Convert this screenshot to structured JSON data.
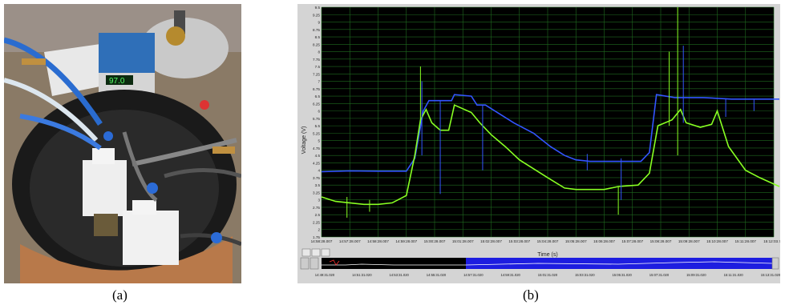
{
  "captions": {
    "a": "(a)",
    "b": "(b)"
  },
  "photo": {
    "controller_display": "97.0",
    "controller_icon": "temperature-controller-icon"
  },
  "chart_data": {
    "type": "line",
    "ylabel": "Voltage (V)",
    "xlabel": "Time (s)",
    "ylim": [
      1.75,
      9.5
    ],
    "yticks": [
      1.75,
      2,
      2.25,
      2.5,
      2.75,
      3,
      3.25,
      3.5,
      3.75,
      4,
      4.25,
      4.5,
      4.75,
      5,
      5.25,
      5.5,
      5.75,
      6,
      6.25,
      6.5,
      6.75,
      7,
      7.25,
      7.5,
      7.75,
      8,
      8.25,
      8.5,
      8.75,
      9,
      9.25,
      9.5
    ],
    "xticks": [
      "14:58:28.007",
      "14:57:28.007",
      "14:58:28.007",
      "14:59:28.007",
      "15:00:28.007",
      "15:01:28.007",
      "15:02:28.007",
      "15:03:28.007",
      "15:04:28.007",
      "15:05:28.007",
      "15:06:28.007",
      "15:07:28.007",
      "15:08:28.007",
      "15:09:28.007",
      "15:10:28.007",
      "15:11:28.007",
      "15:12:03.7 0"
    ],
    "nav_ticks": [
      "14:49:31.020",
      "14:51:31.020",
      "14:53:31.020",
      "14:55:31.020",
      "14:57:31.020",
      "14:59:31.020",
      "15:01:31.020",
      "15:03:31.020",
      "15:05:31.020",
      "15:07:31.020",
      "15:09:31.020",
      "15:11:31.020",
      "15:13:31.020"
    ],
    "grid": true,
    "background": "#000000",
    "grid_color": "#1f6a1f",
    "series": [
      {
        "color": "#3355ff",
        "points": [
          [
            0,
            3.95
          ],
          [
            1,
            3.98
          ],
          [
            2,
            3.97
          ],
          [
            3,
            3.97
          ],
          [
            3.3,
            4.4
          ],
          [
            3.6,
            6.0
          ],
          [
            3.8,
            6.35
          ],
          [
            4.3,
            6.35
          ],
          [
            4.6,
            6.35
          ],
          [
            4.7,
            6.55
          ],
          [
            5.3,
            6.5
          ],
          [
            5.5,
            6.2
          ],
          [
            5.8,
            6.2
          ],
          [
            6.3,
            5.9
          ],
          [
            6.8,
            5.6
          ],
          [
            7.5,
            5.25
          ],
          [
            8.1,
            4.8
          ],
          [
            8.6,
            4.5
          ],
          [
            9.0,
            4.35
          ],
          [
            9.5,
            4.3
          ],
          [
            10.3,
            4.3
          ],
          [
            11.0,
            4.3
          ],
          [
            11.3,
            4.3
          ],
          [
            11.6,
            4.6
          ],
          [
            11.85,
            6.55
          ],
          [
            12.5,
            6.45
          ],
          [
            13.5,
            6.45
          ],
          [
            14.5,
            6.4
          ],
          [
            15.5,
            6.4
          ],
          [
            16.2,
            6.4
          ]
        ]
      },
      {
        "color": "#88ff22",
        "points": [
          [
            0,
            3.1
          ],
          [
            0.5,
            2.95
          ],
          [
            1.0,
            2.9
          ],
          [
            1.5,
            2.85
          ],
          [
            2.0,
            2.85
          ],
          [
            2.5,
            2.9
          ],
          [
            3.0,
            3.15
          ],
          [
            3.3,
            4.5
          ],
          [
            3.5,
            5.7
          ],
          [
            3.7,
            6.05
          ],
          [
            3.9,
            5.6
          ],
          [
            4.2,
            5.35
          ],
          [
            4.5,
            5.35
          ],
          [
            4.7,
            6.2
          ],
          [
            5.3,
            5.95
          ],
          [
            5.6,
            5.6
          ],
          [
            6.0,
            5.2
          ],
          [
            6.5,
            4.8
          ],
          [
            7.0,
            4.35
          ],
          [
            7.5,
            4.05
          ],
          [
            8.0,
            3.75
          ],
          [
            8.6,
            3.4
          ],
          [
            9.0,
            3.35
          ],
          [
            9.5,
            3.35
          ],
          [
            10.0,
            3.35
          ],
          [
            10.5,
            3.45
          ],
          [
            11.2,
            3.5
          ],
          [
            11.6,
            3.9
          ],
          [
            11.9,
            5.5
          ],
          [
            12.4,
            5.7
          ],
          [
            12.7,
            6.05
          ],
          [
            12.9,
            5.6
          ],
          [
            13.4,
            5.45
          ],
          [
            13.8,
            5.55
          ],
          [
            14.0,
            6.0
          ],
          [
            14.4,
            4.8
          ],
          [
            15.0,
            4.0
          ],
          [
            15.5,
            3.75
          ],
          [
            16.2,
            3.45
          ]
        ]
      }
    ],
    "spikes": [
      {
        "x": 3.5,
        "ymin": 5.6,
        "ymax": 7.5,
        "color": "#88ff22"
      },
      {
        "x": 3.55,
        "ymin": 4.5,
        "ymax": 7.0,
        "color": "#3355ff"
      },
      {
        "x": 0.9,
        "ymin": 2.4,
        "ymax": 3.1,
        "color": "#88ff22"
      },
      {
        "x": 1.7,
        "ymin": 2.6,
        "ymax": 3.0,
        "color": "#88ff22"
      },
      {
        "x": 4.2,
        "ymin": 3.2,
        "ymax": 6.35,
        "color": "#3355ff"
      },
      {
        "x": 5.7,
        "ymin": 4.0,
        "ymax": 6.2,
        "color": "#3355ff"
      },
      {
        "x": 9.4,
        "ymin": 4.0,
        "ymax": 4.55,
        "color": "#3355ff"
      },
      {
        "x": 10.5,
        "ymin": 2.5,
        "ymax": 3.45,
        "color": "#88ff22"
      },
      {
        "x": 10.6,
        "ymin": 3.0,
        "ymax": 4.4,
        "color": "#3355ff"
      },
      {
        "x": 12.3,
        "ymin": 5.5,
        "ymax": 8.0,
        "color": "#88ff22"
      },
      {
        "x": 12.6,
        "ymin": 4.5,
        "ymax": 9.5,
        "color": "#88ff22"
      },
      {
        "x": 12.8,
        "ymin": 5.6,
        "ymax": 8.2,
        "color": "#3355ff"
      },
      {
        "x": 14.3,
        "ymin": 5.8,
        "ymax": 6.4,
        "color": "#3355ff"
      },
      {
        "x": 15.3,
        "ymin": 6.0,
        "ymax": 6.4,
        "color": "#3355ff"
      }
    ]
  }
}
